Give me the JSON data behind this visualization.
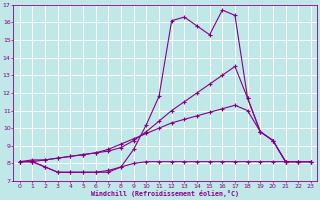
{
  "xlabel": "Windchill (Refroidissement éolien,°C)",
  "background_color": "#c0e8e8",
  "grid_color": "#ffffff",
  "line_color": "#880088",
  "x_data": [
    0,
    1,
    2,
    3,
    4,
    5,
    6,
    7,
    8,
    9,
    10,
    11,
    12,
    13,
    14,
    15,
    16,
    17,
    18,
    19,
    20,
    21,
    22,
    23
  ],
  "line1": [
    8.1,
    8.1,
    7.8,
    7.5,
    7.5,
    7.5,
    7.5,
    7.5,
    7.8,
    8.8,
    10.2,
    11.8,
    16.1,
    16.3,
    15.8,
    15.3,
    16.7,
    16.4,
    11.7,
    9.8,
    9.3,
    8.1,
    8.1,
    8.1
  ],
  "line2": [
    8.1,
    8.2,
    8.2,
    8.3,
    8.4,
    8.5,
    8.6,
    8.7,
    8.9,
    9.3,
    9.8,
    10.4,
    11.0,
    11.5,
    12.0,
    12.5,
    13.0,
    13.5,
    11.7,
    9.8,
    9.3,
    8.1,
    8.1,
    8.1
  ],
  "line3": [
    8.1,
    8.1,
    8.2,
    8.3,
    8.4,
    8.5,
    8.6,
    8.8,
    9.1,
    9.4,
    9.7,
    10.0,
    10.3,
    10.5,
    10.7,
    10.9,
    11.1,
    11.3,
    11.0,
    9.8,
    9.3,
    8.1,
    8.1,
    8.1
  ],
  "line4": [
    8.1,
    8.1,
    7.8,
    7.5,
    7.5,
    7.5,
    7.5,
    7.6,
    7.8,
    8.0,
    8.1,
    8.1,
    8.1,
    8.1,
    8.1,
    8.1,
    8.1,
    8.1,
    8.1,
    8.1,
    8.1,
    8.1,
    8.1,
    8.1
  ],
  "ylim": [
    7,
    17
  ],
  "xlim": [
    -0.5,
    23.5
  ],
  "yticks": [
    7,
    8,
    9,
    10,
    11,
    12,
    13,
    14,
    15,
    16,
    17
  ],
  "xticks": [
    0,
    1,
    2,
    3,
    4,
    5,
    6,
    7,
    8,
    9,
    10,
    11,
    12,
    13,
    14,
    15,
    16,
    17,
    18,
    19,
    20,
    21,
    22,
    23
  ]
}
